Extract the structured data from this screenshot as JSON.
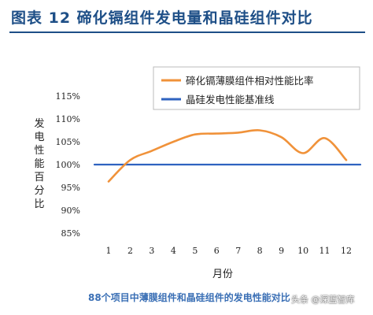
{
  "figure": {
    "title": "图表 12    碲化镉组件发电量和晶硅组件对比",
    "caption": "88个项目中薄膜组件和晶硅组件的发电性能对比",
    "watermark": "头条 @深蓝智库"
  },
  "chart_data": {
    "type": "line",
    "x": [
      1,
      2,
      3,
      4,
      5,
      6,
      7,
      8,
      9,
      10,
      11,
      12
    ],
    "xlabel": "月份",
    "ylabel": "发电性能百分比",
    "ylim": [
      85,
      115
    ],
    "yticks": [
      "85%",
      "90%",
      "95%",
      "100%",
      "105%",
      "110%",
      "115%"
    ],
    "xticks": [
      "1",
      "2",
      "3",
      "4",
      "5",
      "6",
      "7",
      "8",
      "9",
      "10",
      "11",
      "12"
    ],
    "grid": false,
    "legend_position": "top-right",
    "series": [
      {
        "name": "碲化镉薄膜组件相对性能比率",
        "color": "#f0923a",
        "values": [
          96.3,
          101.0,
          103.0,
          105.0,
          106.6,
          106.8,
          107.0,
          107.5,
          106.0,
          102.5,
          105.8,
          101.0
        ]
      },
      {
        "name": "晶硅发电性能基准线",
        "color": "#2f63c0",
        "values": [
          100,
          100,
          100,
          100,
          100,
          100,
          100,
          100,
          100,
          100,
          100,
          100
        ]
      }
    ]
  }
}
